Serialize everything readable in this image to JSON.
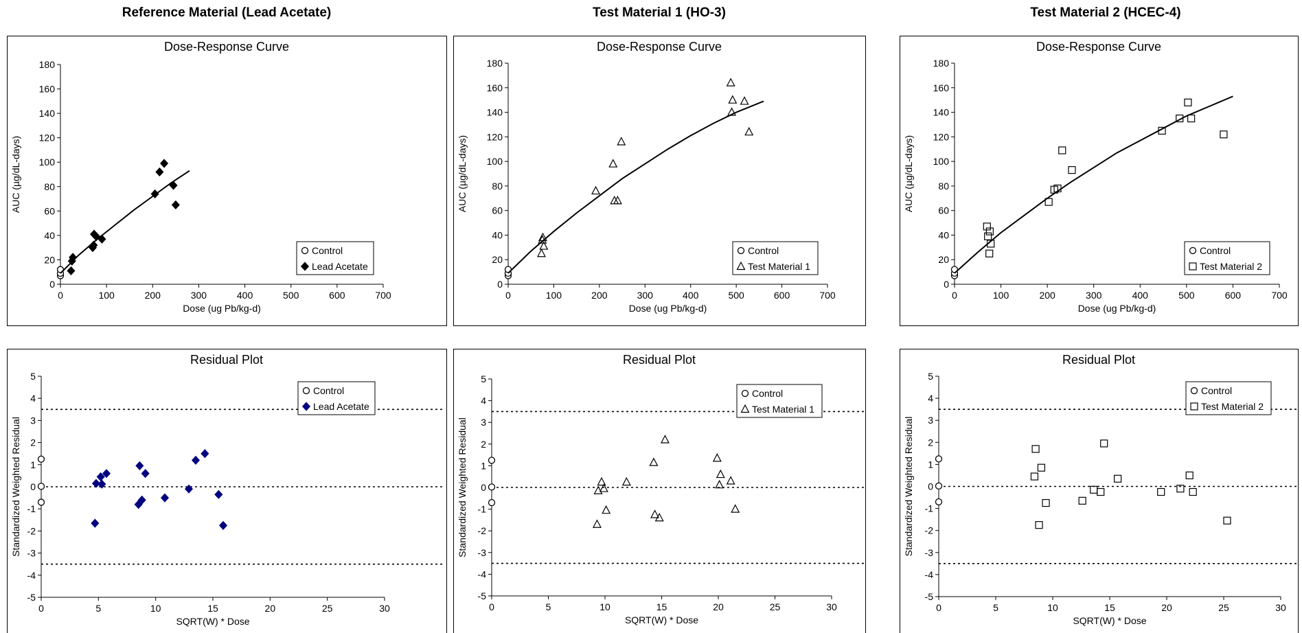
{
  "columns": [
    {
      "title": "Reference Material (Lead Acetate)"
    },
    {
      "title": "Test Material 1 (HO-3)"
    },
    {
      "title": "Test Material 2 (HCEC-4)"
    }
  ],
  "chart_data": [
    {
      "type": "scatter",
      "title": "Dose-Response Curve",
      "xlabel": "Dose (ug Pb/kg-d)",
      "ylabel": "AUC (µg/dL-days)",
      "xlim": [
        0,
        700
      ],
      "ylim": [
        0,
        180
      ],
      "xticks": [
        0,
        100,
        200,
        300,
        400,
        500,
        600,
        700
      ],
      "yticks": [
        0,
        20,
        40,
        60,
        80,
        100,
        120,
        140,
        160,
        180
      ],
      "legend_position": "bottom-right",
      "series": [
        {
          "name": "Control",
          "marker": "circle-open",
          "color": "#000000",
          "points": [
            [
              0,
              7
            ],
            [
              0,
              9
            ],
            [
              0,
              12
            ]
          ]
        },
        {
          "name": "Lead Acetate",
          "marker": "diamond-filled",
          "color": "#000000",
          "points": [
            [
              23,
              11
            ],
            [
              25,
              19
            ],
            [
              27,
              22
            ],
            [
              70,
              30
            ],
            [
              72,
              32
            ],
            [
              73,
              41
            ],
            [
              78,
              39
            ],
            [
              90,
              37
            ],
            [
              205,
              74
            ],
            [
              215,
              92
            ],
            [
              225,
              99
            ],
            [
              245,
              81
            ],
            [
              250,
              65
            ]
          ]
        },
        {
          "name": "",
          "kind": "fit-line",
          "color": "#000000",
          "points": [
            [
              0,
              9
            ],
            [
              40,
              24
            ],
            [
              80,
              37
            ],
            [
              120,
              49
            ],
            [
              160,
              61
            ],
            [
              200,
              72
            ],
            [
              240,
              83
            ],
            [
              280,
              93
            ]
          ]
        }
      ]
    },
    {
      "type": "scatter",
      "title": "Dose-Response Curve",
      "xlabel": "Dose (ug Pb/kg-d)",
      "ylabel": "AUC (µg/dL-days)",
      "xlim": [
        0,
        700
      ],
      "ylim": [
        0,
        180
      ],
      "xticks": [
        0,
        100,
        200,
        300,
        400,
        500,
        600,
        700
      ],
      "yticks": [
        0,
        20,
        40,
        60,
        80,
        100,
        120,
        140,
        160,
        180
      ],
      "legend_position": "bottom-right",
      "series": [
        {
          "name": "Control",
          "marker": "circle-open",
          "color": "#000000",
          "points": [
            [
              0,
              7
            ],
            [
              0,
              9
            ],
            [
              0,
              12
            ]
          ]
        },
        {
          "name": "Test Material 1",
          "marker": "triangle-open",
          "color": "#000000",
          "points": [
            [
              73,
              25
            ],
            [
              75,
              36
            ],
            [
              76,
              38
            ],
            [
              78,
              31
            ],
            [
              192,
              76
            ],
            [
              230,
              98
            ],
            [
              233,
              68
            ],
            [
              240,
              68
            ],
            [
              248,
              116
            ],
            [
              488,
              164
            ],
            [
              490,
              140
            ],
            [
              492,
              150
            ],
            [
              518,
              149
            ],
            [
              528,
              124
            ]
          ]
        },
        {
          "name": "",
          "kind": "fit-line",
          "color": "#000000",
          "points": [
            [
              0,
              9
            ],
            [
              50,
              27
            ],
            [
              100,
              43
            ],
            [
              150,
              58
            ],
            [
              200,
              72
            ],
            [
              250,
              86
            ],
            [
              300,
              98
            ],
            [
              350,
              110
            ],
            [
              400,
              121
            ],
            [
              450,
              131
            ],
            [
              500,
              140
            ],
            [
              560,
              149
            ]
          ]
        }
      ]
    },
    {
      "type": "scatter",
      "title": "Dose-Response Curve",
      "xlabel": "Dose (ug Pb/kg-d)",
      "ylabel": "AUC (µg/dL-days)",
      "xlim": [
        0,
        700
      ],
      "ylim": [
        0,
        180
      ],
      "xticks": [
        0,
        100,
        200,
        300,
        400,
        500,
        600,
        700
      ],
      "yticks": [
        0,
        20,
        40,
        60,
        80,
        100,
        120,
        140,
        160,
        180
      ],
      "legend_position": "bottom-right",
      "series": [
        {
          "name": "Control",
          "marker": "circle-open",
          "color": "#000000",
          "points": [
            [
              0,
              7
            ],
            [
              0,
              9
            ],
            [
              0,
              12
            ]
          ]
        },
        {
          "name": "Test Material 2",
          "marker": "square-open",
          "color": "#000000",
          "points": [
            [
              70,
              47
            ],
            [
              72,
              39
            ],
            [
              75,
              25
            ],
            [
              76,
              43
            ],
            [
              78,
              33
            ],
            [
              203,
              67
            ],
            [
              215,
              77
            ],
            [
              222,
              78
            ],
            [
              232,
              109
            ],
            [
              253,
              93
            ],
            [
              447,
              125
            ],
            [
              485,
              135
            ],
            [
              503,
              148
            ],
            [
              510,
              135
            ],
            [
              580,
              122
            ]
          ]
        },
        {
          "name": "",
          "kind": "fit-line",
          "color": "#000000",
          "points": [
            [
              0,
              9
            ],
            [
              50,
              26
            ],
            [
              100,
              42
            ],
            [
              150,
              56
            ],
            [
              200,
              70
            ],
            [
              250,
              83
            ],
            [
              300,
              95
            ],
            [
              350,
              107
            ],
            [
              400,
              117
            ],
            [
              450,
              127
            ],
            [
              500,
              137
            ],
            [
              550,
              145
            ],
            [
              600,
              153
            ]
          ]
        }
      ]
    },
    {
      "type": "scatter",
      "title": "Residual Plot",
      "xlabel": "SQRT(W) * Dose",
      "ylabel": "Standardized Weighted Residual",
      "xlim": [
        0,
        30
      ],
      "ylim": [
        -5,
        5
      ],
      "xticks": [
        0,
        5,
        10,
        15,
        20,
        25,
        30
      ],
      "yticks": [
        -5,
        -4,
        -3,
        -2,
        -1,
        0,
        1,
        2,
        3,
        4,
        5
      ],
      "reference_lines": [
        3.5,
        0,
        -3.5
      ],
      "legend_position": "top-right",
      "series": [
        {
          "name": "Control",
          "marker": "circle-open",
          "color": "#000000",
          "points": [
            [
              0,
              1.25
            ],
            [
              0,
              0.02
            ],
            [
              0,
              -0.7
            ]
          ]
        },
        {
          "name": "Lead Acetate",
          "marker": "diamond-filled",
          "color": "#000080",
          "points": [
            [
              4.7,
              -1.65
            ],
            [
              4.8,
              0.15
            ],
            [
              5.2,
              0.45
            ],
            [
              5.3,
              0.12
            ],
            [
              5.7,
              0.6
            ],
            [
              8.5,
              -0.8
            ],
            [
              8.6,
              0.95
            ],
            [
              8.8,
              -0.6
            ],
            [
              9.1,
              0.6
            ],
            [
              10.8,
              -0.5
            ],
            [
              12.9,
              -0.1
            ],
            [
              13.5,
              1.2
            ],
            [
              14.3,
              1.5
            ],
            [
              15.5,
              -0.35
            ],
            [
              15.9,
              -1.75
            ]
          ]
        }
      ]
    },
    {
      "type": "scatter",
      "title": "Residual Plot",
      "xlabel": "SQRT(W) * Dose",
      "ylabel": "Standardized Weighted Residual",
      "xlim": [
        0,
        30
      ],
      "ylim": [
        -5,
        5
      ],
      "xticks": [
        0,
        5,
        10,
        15,
        20,
        25,
        30
      ],
      "yticks": [
        -5,
        -4,
        -3,
        -2,
        -1,
        0,
        1,
        2,
        3,
        4,
        5
      ],
      "reference_lines": [
        3.5,
        0,
        -3.5
      ],
      "legend_position": "top-right",
      "series": [
        {
          "name": "Control",
          "marker": "circle-open",
          "color": "#000000",
          "points": [
            [
              0,
              1.25
            ],
            [
              0,
              0.02
            ],
            [
              0,
              -0.7
            ]
          ]
        },
        {
          "name": "Test Material 1",
          "marker": "triangle-open",
          "color": "#000000",
          "points": [
            [
              9.3,
              -1.7
            ],
            [
              9.4,
              -0.15
            ],
            [
              9.7,
              0.25
            ],
            [
              9.9,
              -0.05
            ],
            [
              10.1,
              -1.05
            ],
            [
              11.9,
              0.25
            ],
            [
              14.3,
              1.15
            ],
            [
              14.4,
              -1.25
            ],
            [
              14.8,
              -1.4
            ],
            [
              15.3,
              2.2
            ],
            [
              19.9,
              1.35
            ],
            [
              20.1,
              0.12
            ],
            [
              20.2,
              0.6
            ],
            [
              21.1,
              0.3
            ],
            [
              21.5,
              -1.0
            ]
          ]
        }
      ]
    },
    {
      "type": "scatter",
      "title": "Residual Plot",
      "xlabel": "SQRT(W) * Dose",
      "ylabel": "Standardized Weighted Residual",
      "xlim": [
        0,
        30
      ],
      "ylim": [
        -5,
        5
      ],
      "xticks": [
        0,
        5,
        10,
        15,
        20,
        25,
        30
      ],
      "yticks": [
        -5,
        -4,
        -3,
        -2,
        -1,
        0,
        1,
        2,
        3,
        4,
        5
      ],
      "reference_lines": [
        3.5,
        0,
        -3.5
      ],
      "legend_position": "top-right",
      "series": [
        {
          "name": "Control",
          "marker": "circle-open",
          "color": "#000000",
          "points": [
            [
              0,
              1.25
            ],
            [
              0,
              0.02
            ],
            [
              0,
              -0.7
            ]
          ]
        },
        {
          "name": "Test Material 2",
          "marker": "square-open",
          "color": "#000000",
          "points": [
            [
              8.4,
              0.45
            ],
            [
              8.5,
              1.7
            ],
            [
              8.8,
              -1.75
            ],
            [
              9.0,
              0.85
            ],
            [
              9.4,
              -0.75
            ],
            [
              12.6,
              -0.65
            ],
            [
              13.6,
              -0.15
            ],
            [
              14.2,
              -0.25
            ],
            [
              14.5,
              1.95
            ],
            [
              15.7,
              0.35
            ],
            [
              19.5,
              -0.25
            ],
            [
              21.2,
              -0.1
            ],
            [
              22.0,
              0.5
            ],
            [
              22.3,
              -0.25
            ],
            [
              25.3,
              -1.55
            ]
          ]
        }
      ]
    }
  ]
}
